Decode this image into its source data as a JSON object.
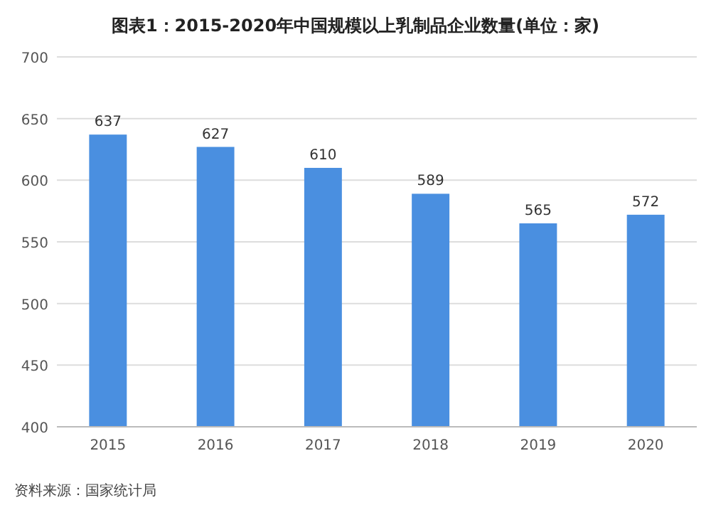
{
  "chart_data": {
    "type": "bar",
    "title": "图表1：2015-2020年中国规模以上乳制品企业数量(单位：家)",
    "categories": [
      "2015",
      "2016",
      "2017",
      "2018",
      "2019",
      "2020"
    ],
    "values": [
      637,
      627,
      610,
      589,
      565,
      572
    ],
    "color": "#4a8fe0",
    "ylim": [
      400,
      700
    ],
    "yticks": [
      400,
      450,
      500,
      550,
      600,
      650,
      700
    ],
    "grid": "y",
    "data_labels": true,
    "annotations": [
      "资料来源：国家统计局"
    ]
  }
}
